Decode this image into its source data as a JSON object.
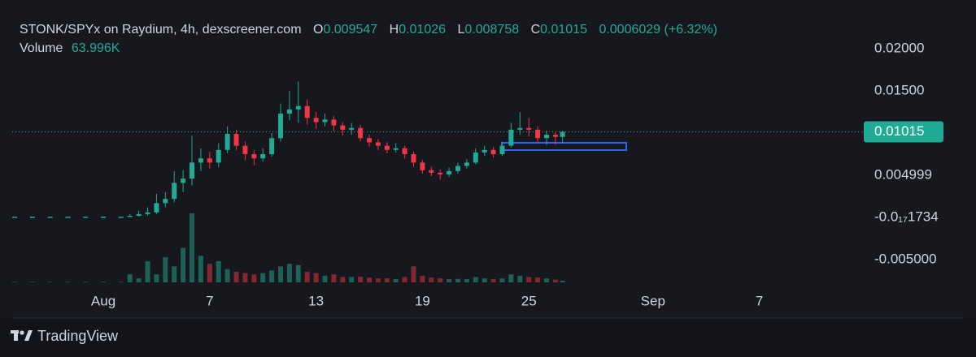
{
  "header": {
    "symbol": "STONK/SPYx on Raydium, 4h, dexscreener.com",
    "open_label": "O",
    "high_label": "H",
    "low_label": "L",
    "close_label": "C",
    "change": 0.0006029,
    "change_pct": "(+6.32%)",
    "volume_label": "Volume",
    "volume_value": "63.996K"
  },
  "chart_data": {
    "type": "candlestick",
    "up_color": "#22ab94",
    "down_color": "#f23645",
    "grid": false,
    "xlim": [
      -4.14,
      43.8
    ],
    "xticks": [
      {
        "value": 1,
        "label": "Aug"
      },
      7,
      13,
      19,
      25,
      {
        "value": 32,
        "label": "Sep"
      },
      {
        "value": 38,
        "label": "7"
      }
    ],
    "ylim": [
      -0.00788,
      0.02192
    ],
    "yticks": [
      {
        "value": 0.02,
        "label": "0.02000"
      },
      {
        "value": 0.015,
        "label": "0.01500"
      },
      0.004999,
      {
        "value": -1.734e-18,
        "label": "-0.0₁₇1734"
      },
      {
        "value": -0.005,
        "label": "-0.005000"
      }
    ],
    "candles": {
      "x": [
        -4,
        -3,
        -2,
        -1,
        0,
        1,
        2,
        2.5,
        3,
        3.5,
        4,
        4.5,
        5,
        5.5,
        6,
        6.5,
        7,
        7.5,
        8,
        8.5,
        9,
        9.5,
        10,
        10.5,
        11,
        11.5,
        12,
        12.5,
        13,
        13.5,
        14,
        14.5,
        15,
        15.5,
        16,
        16.5,
        17,
        17.5,
        18,
        18.5,
        19,
        19.5,
        20,
        20.5,
        21,
        21.5,
        22,
        22.5,
        23,
        23.5,
        24,
        24.5,
        25,
        25.5,
        26,
        26.5,
        26.9
      ],
      "open": [
        0.0001,
        0.0001,
        0.0001,
        0.0001,
        0.0001,
        0.0001,
        0.0001,
        0.0001,
        0.0002,
        0.0004,
        0.0006,
        0.0017,
        0.0022,
        0.0041,
        0.0046,
        0.0065,
        0.007,
        0.0065,
        0.008,
        0.0099,
        0.0085,
        0.0075,
        0.007,
        0.0075,
        0.0094,
        0.0123,
        0.0128,
        0.0132,
        0.0118,
        0.0113,
        0.0116,
        0.0109,
        0.0104,
        0.0106,
        0.0094,
        0.0089,
        0.0085,
        0.008,
        0.0082,
        0.0075,
        0.0065,
        0.0056,
        0.0053,
        0.0051,
        0.0055,
        0.0061,
        0.0065,
        0.0077,
        0.008,
        0.0075,
        0.0085,
        0.0104,
        0.0106,
        0.0104,
        0.0094,
        0.0098,
        0.009547
      ],
      "high": [
        0.0001,
        0.0001,
        0.0001,
        0.0001,
        0.0001,
        0.0001,
        0.0001,
        0.0004,
        0.0008,
        0.0012,
        0.0028,
        0.003,
        0.0055,
        0.0056,
        0.0097,
        0.0082,
        0.0078,
        0.0088,
        0.0108,
        0.0104,
        0.009,
        0.008,
        0.0082,
        0.01,
        0.0135,
        0.015,
        0.0161,
        0.014,
        0.0125,
        0.0123,
        0.012,
        0.0113,
        0.0112,
        0.011,
        0.0098,
        0.0093,
        0.0089,
        0.0088,
        0.0085,
        0.0078,
        0.0068,
        0.006,
        0.0057,
        0.0059,
        0.0065,
        0.0069,
        0.0082,
        0.0085,
        0.0083,
        0.009,
        0.0112,
        0.0125,
        0.0118,
        0.0108,
        0.0103,
        0.0101,
        0.01026
      ],
      "low": [
        0.0001,
        0.0001,
        0.0001,
        0.0001,
        0.0001,
        0.0001,
        0.0001,
        0.0001,
        0.0001,
        0.0002,
        0.0004,
        0.0012,
        0.0018,
        0.003,
        0.0038,
        0.0055,
        0.0058,
        0.006,
        0.0076,
        0.008,
        0.0068,
        0.0062,
        0.0066,
        0.0072,
        0.009,
        0.0115,
        0.0112,
        0.011,
        0.0105,
        0.0108,
        0.0102,
        0.0097,
        0.0098,
        0.009,
        0.0084,
        0.008,
        0.0076,
        0.0077,
        0.007,
        0.006,
        0.0052,
        0.0049,
        0.0045,
        0.0048,
        0.0052,
        0.0058,
        0.0063,
        0.0073,
        0.0071,
        0.0073,
        0.0083,
        0.0098,
        0.0096,
        0.0088,
        0.0086,
        0.0086,
        0.008758
      ],
      "close": [
        0.0001,
        0.0001,
        0.0001,
        0.0001,
        0.0001,
        0.0001,
        0.0001,
        0.0002,
        0.0004,
        0.0006,
        0.0017,
        0.0022,
        0.0041,
        0.0046,
        0.0065,
        0.007,
        0.0065,
        0.008,
        0.0099,
        0.0085,
        0.0075,
        0.007,
        0.0075,
        0.0094,
        0.0123,
        0.0128,
        0.0132,
        0.0118,
        0.0113,
        0.0116,
        0.0109,
        0.0104,
        0.0106,
        0.0094,
        0.0089,
        0.0085,
        0.008,
        0.0082,
        0.0075,
        0.0065,
        0.0056,
        0.0053,
        0.0051,
        0.0055,
        0.0061,
        0.0065,
        0.0077,
        0.008,
        0.0075,
        0.0085,
        0.0104,
        0.0106,
        0.0104,
        0.0094,
        0.0098,
        0.009547,
        0.01015
      ],
      "volume": [
        20000,
        20000,
        20000,
        20000,
        20000,
        20000,
        20000,
        300000,
        150000,
        800000,
        300000,
        950000,
        600000,
        1300000,
        2600000,
        1000000,
        700000,
        800000,
        500000,
        400000,
        350000,
        300000,
        350000,
        450000,
        600000,
        700000,
        650000,
        400000,
        350000,
        250000,
        300000,
        200000,
        200000,
        220000,
        180000,
        150000,
        150000,
        120000,
        200000,
        600000,
        250000,
        180000,
        150000,
        120000,
        130000,
        120000,
        200000,
        150000,
        120000,
        150000,
        300000,
        250000,
        200000,
        180000,
        150000,
        100000,
        63996
      ]
    }
  },
  "branding": "TradingView"
}
